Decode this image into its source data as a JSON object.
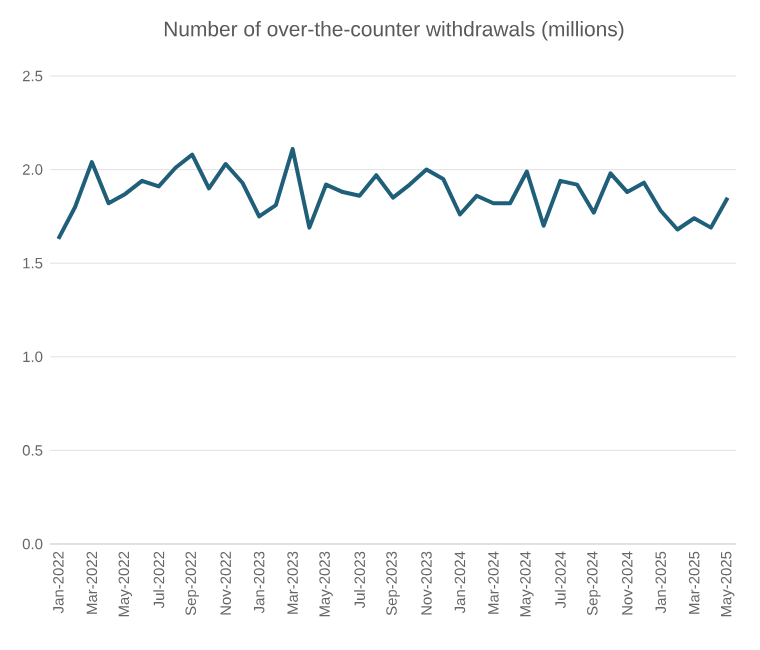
{
  "chart_data": {
    "type": "line",
    "title": "Number of over-the-counter withdrawals (millions)",
    "categories": [
      "Jan-2022",
      null,
      "Mar-2022",
      null,
      "May-2022",
      null,
      "Jul-2022",
      null,
      "Sep-2022",
      null,
      "Nov-2022",
      null,
      "Jan-2023",
      null,
      "Mar-2023",
      null,
      "May-2023",
      null,
      "Jul-2023",
      null,
      "Sep-2023",
      null,
      "Nov-2023",
      null,
      "Jan-2024",
      null,
      "Mar-2024",
      null,
      "May-2024",
      null,
      "Jul-2024",
      null,
      "Sep-2024",
      null,
      "Nov-2024",
      null,
      "Jan-2025",
      null,
      "Mar-2025",
      null,
      "May-2025"
    ],
    "series": [
      {
        "color": "#1f5f7a",
        "values": [
          1.63,
          1.8,
          2.04,
          1.82,
          1.87,
          1.94,
          1.91,
          2.01,
          2.08,
          1.9,
          2.03,
          1.93,
          1.75,
          1.81,
          2.11,
          1.69,
          1.92,
          1.88,
          1.86,
          1.97,
          1.85,
          1.92,
          2.0,
          1.95,
          1.76,
          1.86,
          1.82,
          1.82,
          1.99,
          1.7,
          1.94,
          1.92,
          1.77,
          1.98,
          1.88,
          1.93,
          1.78,
          1.68,
          1.74,
          1.69,
          1.85
        ]
      }
    ],
    "ylim": [
      0,
      2.5
    ],
    "yticks": [
      {
        "value": 0,
        "label": "0.0"
      },
      0.5,
      {
        "value": 1,
        "label": "1.0"
      },
      1.5,
      {
        "value": 2,
        "label": "2.0"
      },
      2.5
    ],
    "grid": "y"
  }
}
